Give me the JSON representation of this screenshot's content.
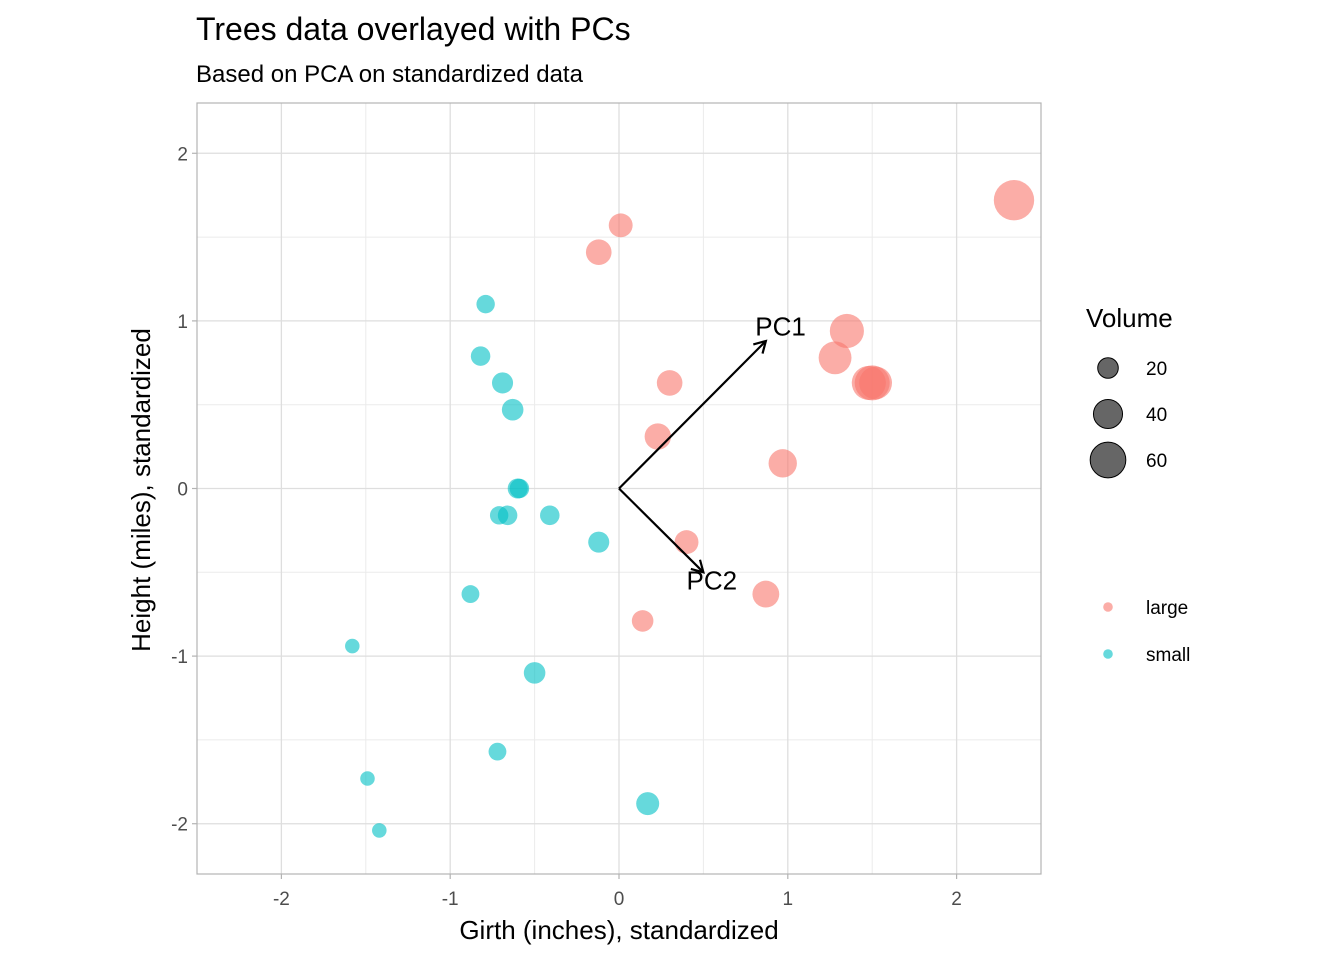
{
  "chart_data": {
    "type": "scatter",
    "title": "Trees data overlayed with PCs",
    "subtitle": "Based on PCA on standardized data",
    "xlabel": "Girth (inches), standardized",
    "ylabel": "Height (miles), standardized",
    "xlim": [
      -2.5,
      2.5
    ],
    "ylim": [
      -2.3,
      2.3
    ],
    "x_ticks": [
      -2,
      -1,
      0,
      1,
      2
    ],
    "y_ticks": [
      -2,
      -1,
      0,
      1,
      2
    ],
    "x_tick_labels": [
      "-2",
      "-1",
      "0",
      "1",
      "2"
    ],
    "y_tick_labels": [
      "-2",
      "-1",
      "0",
      "1",
      "2"
    ],
    "grid": true,
    "colors": {
      "large": "#F8766D",
      "small": "#00BFC4"
    },
    "series": [
      {
        "name": "large",
        "points": [
          {
            "x": 0.01,
            "y": 1.57,
            "volume": 27
          },
          {
            "x": -0.12,
            "y": 1.41,
            "volume": 31
          },
          {
            "x": 0.3,
            "y": 0.63,
            "volume": 31
          },
          {
            "x": 0.23,
            "y": 0.31,
            "volume": 33
          },
          {
            "x": 0.4,
            "y": -0.32,
            "volume": 27
          },
          {
            "x": 0.14,
            "y": -0.79,
            "volume": 22
          },
          {
            "x": 0.87,
            "y": -0.63,
            "volume": 34
          },
          {
            "x": 0.97,
            "y": 0.15,
            "volume": 38
          },
          {
            "x": 1.28,
            "y": 0.78,
            "volume": 51
          },
          {
            "x": 1.35,
            "y": 0.94,
            "volume": 55
          },
          {
            "x": 1.48,
            "y": 0.63,
            "volume": 55
          },
          {
            "x": 1.5,
            "y": 0.63,
            "volume": 58
          },
          {
            "x": 1.52,
            "y": 0.63,
            "volume": 51
          },
          {
            "x": 2.34,
            "y": 1.72,
            "volume": 77
          }
        ]
      },
      {
        "name": "small",
        "points": [
          {
            "x": -0.79,
            "y": 1.1,
            "volume": 16
          },
          {
            "x": -0.82,
            "y": 0.79,
            "volume": 18
          },
          {
            "x": -0.69,
            "y": 0.63,
            "volume": 21
          },
          {
            "x": -0.63,
            "y": 0.47,
            "volume": 22
          },
          {
            "x": -0.6,
            "y": 0.0,
            "volume": 19
          },
          {
            "x": -0.59,
            "y": 0.0,
            "volume": 18
          },
          {
            "x": -0.71,
            "y": -0.16,
            "volume": 16
          },
          {
            "x": -0.66,
            "y": -0.16,
            "volume": 18
          },
          {
            "x": -0.41,
            "y": -0.16,
            "volume": 18
          },
          {
            "x": -0.12,
            "y": -0.32,
            "volume": 21
          },
          {
            "x": -0.88,
            "y": -0.63,
            "volume": 15
          },
          {
            "x": -1.58,
            "y": -0.94,
            "volume": 10
          },
          {
            "x": -0.5,
            "y": -1.1,
            "volume": 22
          },
          {
            "x": -0.72,
            "y": -1.57,
            "volume": 15
          },
          {
            "x": 0.17,
            "y": -1.88,
            "volume": 25
          },
          {
            "x": -1.49,
            "y": -1.73,
            "volume": 10
          },
          {
            "x": -1.42,
            "y": -2.04,
            "volume": 10
          }
        ]
      }
    ],
    "arrows": [
      {
        "name": "PC1",
        "x": 0.87,
        "y": 0.88
      },
      {
        "name": "PC2",
        "x": 0.5,
        "y": -0.5
      }
    ],
    "legends": {
      "size": {
        "title": "Volume",
        "values": [
          20,
          40,
          60
        ],
        "labels": [
          "20",
          "40",
          "60"
        ]
      },
      "color": {
        "entries": [
          "large",
          "small"
        ]
      }
    }
  }
}
